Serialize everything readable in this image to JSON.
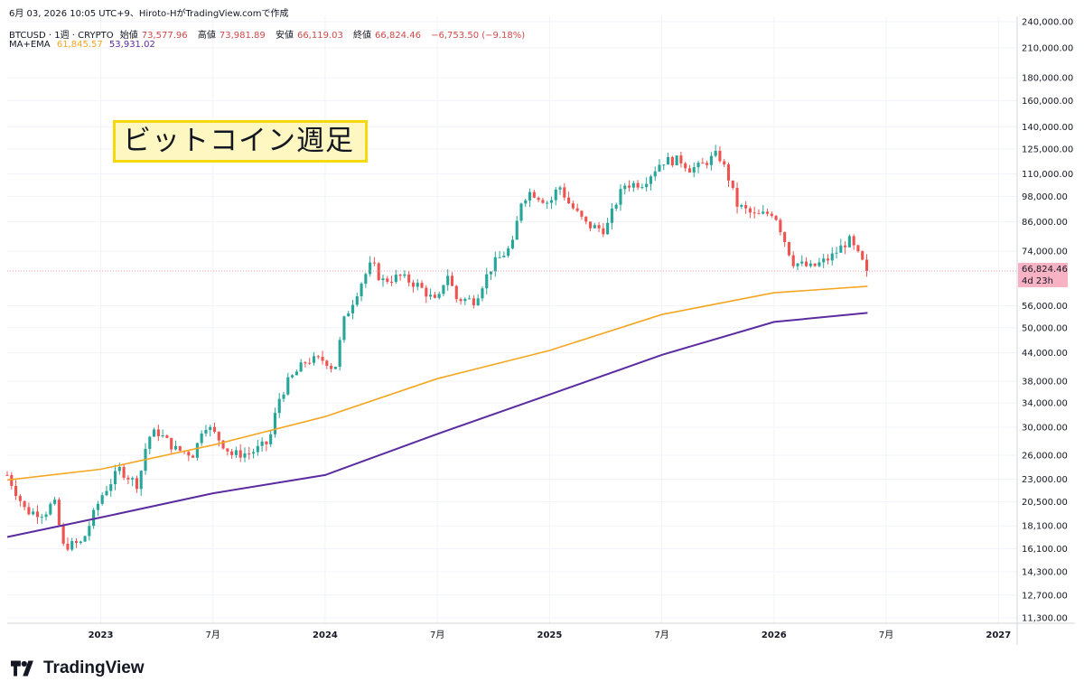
{
  "header": {
    "timestamp_line": "6月 03, 2026 10:05 UTC+9、Hiroto-HがTradingView.comで作成",
    "symbol": "BTCUSD · 1週 · CRYPTO",
    "open_label": "始値",
    "open": "73,577.96",
    "high_label": "高値",
    "high": "73,981.89",
    "low_label": "安値",
    "low": "66,119.03",
    "close_label": "終値",
    "close": "66,824.46",
    "change": "−6,753.50 (−9.18%)",
    "indicator_name": "MA+EMA",
    "ma_value": "61,845.57",
    "ema_value": "53,931.02"
  },
  "annotation": {
    "text": "ビットコイン週足"
  },
  "last_price": {
    "value": "66,824.46",
    "countdown": "4d 23h"
  },
  "brand": {
    "name": "TradingView"
  },
  "colors": {
    "up": "#26a69a",
    "down": "#ef5350",
    "ma": "#f5a623",
    "ema": "#5b2c9f"
  },
  "chart_data": {
    "type": "candlestick",
    "scale": "log",
    "grid": true,
    "y_ticks": [
      "240,000.00",
      "210,000.00",
      "180,000.00",
      "160,000.00",
      "140,000.00",
      "125,000.00",
      "110,000.00",
      "98,000.00",
      "86,000.00",
      "74,000.00",
      "56,000.00",
      "50,000.00",
      "44,000.00",
      "38,000.00",
      "34,000.00",
      "30,000.00",
      "26,000.00",
      "23,000.00",
      "20,500.00",
      "18,100.00",
      "16,100.00",
      "14,300.00",
      "12,700.00",
      "11,300.00"
    ],
    "x_ticks": [
      {
        "label": "2023",
        "t": "2023-01"
      },
      {
        "label": "7月",
        "t": "2023-07"
      },
      {
        "label": "2024",
        "t": "2024-01"
      },
      {
        "label": "7月",
        "t": "2024-07"
      },
      {
        "label": "2025",
        "t": "2025-01"
      },
      {
        "label": "7月",
        "t": "2025-07"
      },
      {
        "label": "2026",
        "t": "2026-01"
      },
      {
        "label": "7月",
        "t": "2026-07"
      },
      {
        "label": "2027",
        "t": "2027-01"
      }
    ],
    "x_range": [
      "2022-08",
      "2027-02"
    ],
    "close_path": [
      [
        "2022-08",
        23500
      ],
      [
        "2022-09",
        19500
      ],
      [
        "2022-10",
        19300
      ],
      [
        "2022-10",
        20600
      ],
      [
        "2022-11",
        16300
      ],
      [
        "2022-12",
        16600
      ],
      [
        "2023-01",
        21000
      ],
      [
        "2023-02",
        24200
      ],
      [
        "2023-03",
        22300
      ],
      [
        "2023-03",
        28400
      ],
      [
        "2023-04",
        29400
      ],
      [
        "2023-05",
        26800
      ],
      [
        "2023-06",
        26100
      ],
      [
        "2023-06",
        30700
      ],
      [
        "2023-07",
        29300
      ],
      [
        "2023-08",
        26100
      ],
      [
        "2023-09",
        26300
      ],
      [
        "2023-10",
        27800
      ],
      [
        "2023-10",
        34500
      ],
      [
        "2023-11",
        37800
      ],
      [
        "2023-12",
        42300
      ],
      [
        "2024-01",
        42400
      ],
      [
        "2024-01",
        40200
      ],
      [
        "2024-02",
        51800
      ],
      [
        "2024-03",
        64000
      ],
      [
        "2024-03",
        69700
      ],
      [
        "2024-04",
        63500
      ],
      [
        "2024-05",
        65000
      ],
      [
        "2024-06",
        62000
      ],
      [
        "2024-07",
        56500
      ],
      [
        "2024-07",
        66800
      ],
      [
        "2024-08",
        58000
      ],
      [
        "2024-09",
        57500
      ],
      [
        "2024-09",
        63700
      ],
      [
        "2024-10",
        69400
      ],
      [
        "2024-11",
        76000
      ],
      [
        "2024-11",
        96500
      ],
      [
        "2024-12",
        100500
      ],
      [
        "2025-01",
        94500
      ],
      [
        "2025-01",
        104000
      ],
      [
        "2025-02",
        95000
      ],
      [
        "2025-03",
        84500
      ],
      [
        "2025-04",
        82500
      ],
      [
        "2025-04",
        94000
      ],
      [
        "2025-05",
        104000
      ],
      [
        "2025-06",
        105000
      ],
      [
        "2025-07",
        117500
      ],
      [
        "2025-08",
        118000
      ],
      [
        "2025-08",
        113000
      ],
      [
        "2025-09",
        114000
      ],
      [
        "2025-10",
        122000
      ],
      [
        "2025-10",
        110000
      ],
      [
        "2025-11",
        94000
      ],
      [
        "2025-12",
        88500
      ],
      [
        "2026-01",
        90500
      ],
      [
        "2026-02",
        70000
      ],
      [
        "2026-03",
        68000
      ],
      [
        "2026-04",
        71500
      ],
      [
        "2026-05",
        78500
      ],
      [
        "2026-06",
        66824
      ]
    ],
    "series": [
      {
        "name": "MA",
        "color": "#f5a623",
        "points": [
          [
            "2022-08",
            22900
          ],
          [
            "2023-01",
            24200
          ],
          [
            "2023-07",
            27400
          ],
          [
            "2024-01",
            31700
          ],
          [
            "2024-07",
            38500
          ],
          [
            "2025-01",
            44500
          ],
          [
            "2025-07",
            53500
          ],
          [
            "2026-01",
            59800
          ],
          [
            "2026-06",
            61845
          ]
        ]
      },
      {
        "name": "EMA",
        "color": "#5b2c9f",
        "points": [
          [
            "2022-08",
            17100
          ],
          [
            "2023-01",
            18900
          ],
          [
            "2023-07",
            21400
          ],
          [
            "2024-01",
            23500
          ],
          [
            "2024-07",
            29000
          ],
          [
            "2025-01",
            35500
          ],
          [
            "2025-07",
            43500
          ],
          [
            "2026-01",
            51500
          ],
          [
            "2026-06",
            53931
          ]
        ]
      }
    ]
  }
}
